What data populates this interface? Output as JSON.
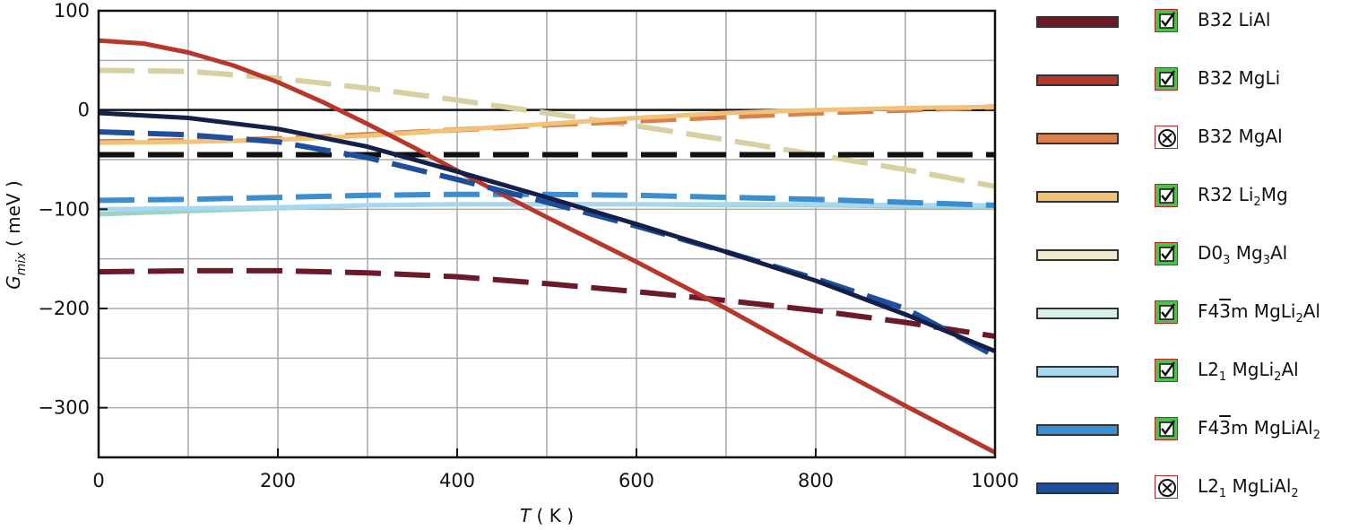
{
  "chart_data": {
    "type": "line",
    "title": "",
    "xlabel": "T ( K )",
    "ylabel": "G_mix ( meV )",
    "xlim": [
      0,
      1000
    ],
    "ylim": [
      -350,
      100
    ],
    "xticks": [
      0,
      200,
      400,
      600,
      800,
      1000
    ],
    "xtick_labels": [
      "0",
      "200",
      "400",
      "600",
      "800",
      "1000"
    ],
    "yticks": [
      -300,
      -200,
      -100,
      0,
      100
    ],
    "ytick_labels": [
      "−300",
      "−200",
      "−100",
      "0",
      "100"
    ],
    "grid": true,
    "legend_position": "right",
    "series": [
      {
        "name": "B32 LiAl",
        "color": "#6b1a2a",
        "dash": true,
        "x": [
          0,
          100,
          200,
          300,
          400,
          500,
          600,
          700,
          800,
          900,
          1000
        ],
        "y": [
          -163,
          -162,
          -162,
          -164,
          -168,
          -175,
          -183,
          -192,
          -202,
          -214,
          -228
        ]
      },
      {
        "name": "B32 MgLi",
        "color": "#b8372c",
        "dash": false,
        "x": [
          0,
          50,
          100,
          150,
          200,
          250,
          300,
          350,
          400,
          450,
          500,
          600,
          700,
          800,
          900,
          1000
        ],
        "y": [
          70,
          67,
          58,
          45,
          28,
          8,
          -14,
          -37,
          -61,
          -85,
          -108,
          -153,
          -200,
          -250,
          -298,
          -345
        ]
      },
      {
        "name": "B32 MgAl",
        "color": "#d9804c",
        "dash": true,
        "x": [
          0,
          100,
          200,
          300,
          400,
          500,
          600,
          700,
          800,
          900,
          1000
        ],
        "y": [
          -32,
          -31,
          -29,
          -25,
          -20,
          -15,
          -11,
          -7,
          -3,
          0,
          3
        ]
      },
      {
        "name": "R32 Li2Mg",
        "color": "#f0c27a",
        "dash": false,
        "x": [
          0,
          100,
          200,
          300,
          400,
          500,
          600,
          700,
          800,
          900,
          1000
        ],
        "y": [
          -33,
          -32,
          -30,
          -26,
          -20,
          -14,
          -8,
          -3,
          0,
          2,
          3
        ]
      },
      {
        "name": "D03 Mg3Al",
        "color": "#d6d0a2",
        "dash": true,
        "x": [
          0,
          100,
          200,
          300,
          400,
          500,
          600,
          700,
          800,
          900,
          1000
        ],
        "y": [
          40,
          39,
          32,
          22,
          10,
          -3,
          -16,
          -30,
          -45,
          -60,
          -77
        ]
      },
      {
        "name": "F43m MgLi2Al",
        "color": "#9fd1c4",
        "dash": false,
        "x": [
          0,
          100,
          200,
          300,
          400,
          500,
          600,
          700,
          800,
          900,
          1000
        ],
        "y": [
          -105,
          -102,
          -99,
          -96,
          -95,
          -95,
          -95,
          -96,
          -96,
          -97,
          -98
        ]
      },
      {
        "name": "L21 MgLi2Al",
        "color": "#a8d8f0",
        "dash": false,
        "x": [
          0,
          100,
          200,
          300,
          400,
          500,
          600,
          700,
          800,
          900,
          1000
        ],
        "y": [
          -100,
          -99,
          -98,
          -96,
          -95,
          -95,
          -95,
          -95,
          -95,
          -96,
          -96
        ]
      },
      {
        "name": "F43m MgLiAl2",
        "color": "#3a8fd0",
        "dash": true,
        "x": [
          0,
          100,
          200,
          300,
          400,
          500,
          600,
          700,
          800,
          900,
          1000
        ],
        "y": [
          -91,
          -90,
          -88,
          -86,
          -85,
          -85,
          -86,
          -88,
          -90,
          -93,
          -96
        ]
      },
      {
        "name": "L21 MgLiAl2",
        "color": "#1f4e9c",
        "dash": true,
        "x": [
          0,
          100,
          200,
          300,
          400,
          500,
          600,
          700,
          800,
          900,
          1000
        ],
        "y": [
          -22,
          -25,
          -32,
          -48,
          -70,
          -93,
          -117,
          -143,
          -170,
          -200,
          -248
        ]
      },
      {
        "name": "black dashed",
        "color": "#111111",
        "dash": true,
        "legend": false,
        "x": [
          0,
          1000
        ],
        "y": [
          -45,
          -45
        ]
      },
      {
        "name": "navy solid",
        "color": "#141f4a",
        "dash": false,
        "legend": false,
        "x": [
          0,
          100,
          200,
          300,
          400,
          500,
          600,
          700,
          800,
          900,
          1000
        ],
        "y": [
          -3,
          -8,
          -19,
          -37,
          -62,
          -88,
          -115,
          -143,
          -172,
          -206,
          -243
        ]
      }
    ]
  },
  "legend": {
    "items": [
      {
        "color": "#6b1a2a",
        "status": "check",
        "name": "B32 LiAl",
        "label_html": "B32 LiAl"
      },
      {
        "color": "#b8372c",
        "status": "check",
        "name": "B32 MgLi",
        "label_html": "B32 MgLi"
      },
      {
        "color": "#d9804c",
        "status": "cross",
        "name": "B32 MgAl",
        "label_html": "B32 MgAl"
      },
      {
        "color": "#f0c27a",
        "status": "check",
        "name": "R32 Li2Mg",
        "label_html": "R32 Li<sub>2</sub>Mg"
      },
      {
        "color": "#eeeacc",
        "status": "check",
        "name": "D03 Mg3Al",
        "label_html": "D0<sub>3</sub> Mg<sub>3</sub>Al"
      },
      {
        "color": "#d6efe8",
        "status": "check",
        "name": "F43m MgLi2Al",
        "label_html": "F4<span class=\"ov\">3</span>m MgLi<sub>2</sub>Al"
      },
      {
        "color": "#a8d8f0",
        "status": "check",
        "name": "L21 MgLi2Al",
        "label_html": "L2<sub>1</sub> MgLi<sub>2</sub>Al"
      },
      {
        "color": "#3a8fd0",
        "status": "check",
        "name": "F43m MgLiAl2",
        "label_html": "F4<span class=\"ov\">3</span>m MgLiAl<sub>2</sub>"
      },
      {
        "color": "#1f4e9c",
        "status": "cross",
        "name": "L21 MgLiAl2",
        "label_html": "L2<sub>1</sub> MgLiAl<sub>2</sub>"
      }
    ]
  }
}
